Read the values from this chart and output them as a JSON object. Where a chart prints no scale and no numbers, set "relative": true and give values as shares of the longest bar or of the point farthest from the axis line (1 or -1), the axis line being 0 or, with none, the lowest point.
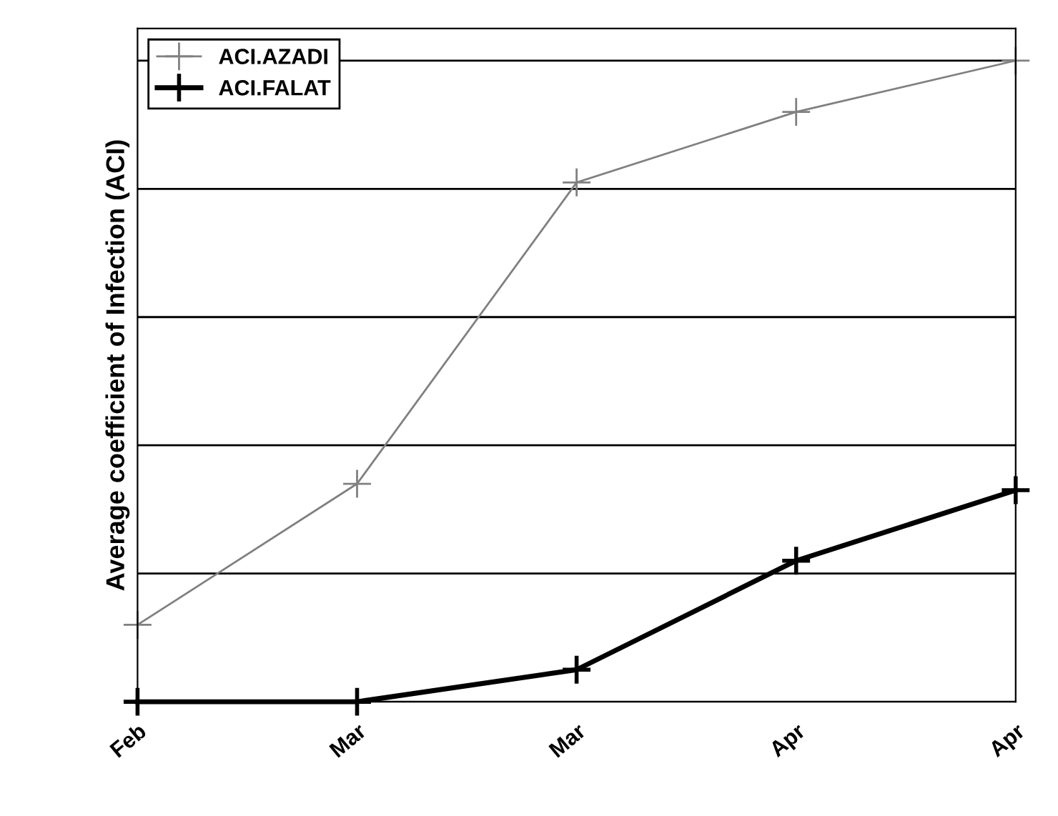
{
  "chart_data": {
    "type": "line",
    "ylabel": "Average coefficient of Infection (ACI)",
    "categories": [
      "Feb",
      "Mar",
      "Mar",
      "Apr",
      "Apr"
    ],
    "relative": true,
    "grid": "y",
    "legend": "top left",
    "marker": "cross",
    "series": [
      {
        "name": "ACI.AZADI",
        "color": "#808080",
        "values": [
          0.12,
          0.34,
          0.81,
          0.92,
          1.0
        ]
      },
      {
        "name": "ACI.FALAT",
        "color": "#000000",
        "values": [
          0,
          0,
          0.05,
          0.22,
          0.33
        ]
      }
    ]
  }
}
